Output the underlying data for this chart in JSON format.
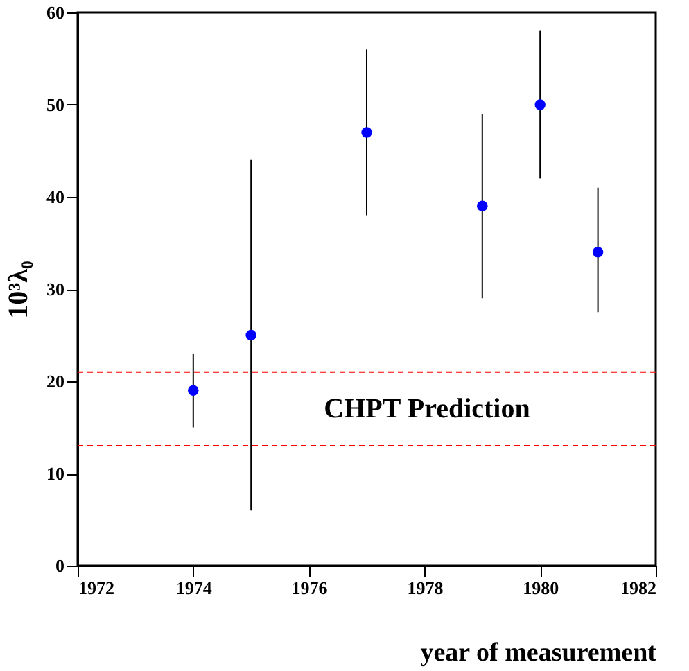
{
  "chart_data": {
    "type": "scatter",
    "xlabel": "year of measurement",
    "ylabel": "10³λ₀",
    "x": [
      1974,
      1975,
      1977,
      1979,
      1980,
      1981
    ],
    "series": [
      {
        "color": "#0000ff",
        "values": [
          19,
          25,
          47,
          39,
          50,
          34
        ],
        "errors": [
          [
            15,
            23
          ],
          [
            6,
            44
          ],
          [
            38,
            56
          ],
          [
            29,
            49
          ],
          [
            42,
            58
          ],
          [
            27.5,
            41
          ]
        ]
      }
    ],
    "xlim": [
      1972,
      1982
    ],
    "xticks": [
      1972,
      1974,
      1976,
      1978,
      1980,
      1982
    ],
    "ylim": [
      0,
      60
    ],
    "yticks": [
      0,
      10,
      20,
      30,
      40,
      50,
      60
    ],
    "grid": false,
    "marker": "circle",
    "ref_lines": [
      {
        "axis": "y",
        "value": 21,
        "color": "#ff0000",
        "line_style": "dashed"
      },
      {
        "axis": "y",
        "value": 13,
        "color": "#ff0000",
        "line_style": "dashed"
      }
    ],
    "annotations": [
      "CHPT Prediction"
    ]
  }
}
